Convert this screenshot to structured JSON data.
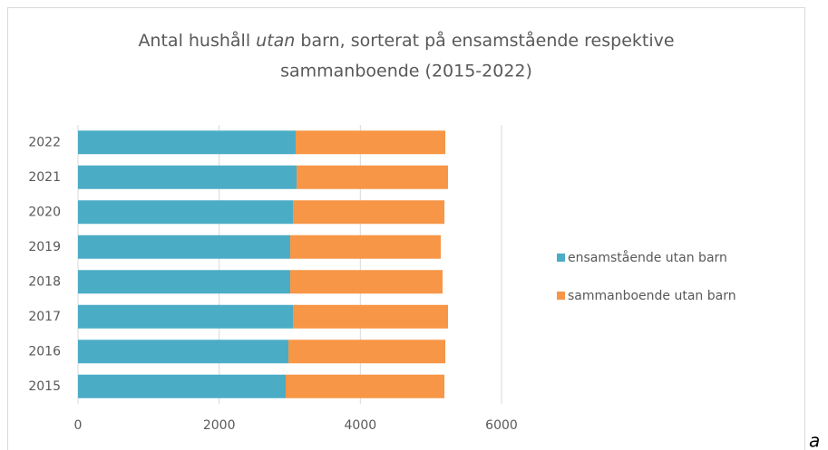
{
  "chart_data": {
    "type": "stacked-bar-horizontal",
    "title": [
      "Antal hushåll",
      "utan",
      "barn, sorterat på ensamstående respektive",
      "sammanboende (2015-2022)"
    ],
    "categories": [
      "2022",
      "2021",
      "2020",
      "2019",
      "2018",
      "2017",
      "2016",
      "2015"
    ],
    "series": [
      {
        "name": "ensamstående utan barn",
        "color": "#4bacc6",
        "values": [
          3084,
          3097,
          3045,
          3007,
          3007,
          3045,
          2981,
          2942
        ]
      },
      {
        "name": "sammanboende utan barn",
        "color": "#f79646",
        "values": [
          2120,
          2145,
          2146,
          2132,
          2158,
          2197,
          2223,
          2249
        ]
      }
    ],
    "xlim": [
      0,
      6000
    ],
    "xticks": [
      0,
      2000,
      4000,
      6000
    ],
    "grid": true,
    "legend": "right",
    "note": "a"
  }
}
